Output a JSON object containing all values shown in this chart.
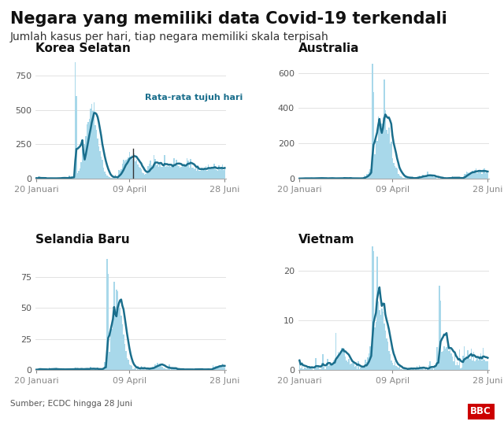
{
  "title": "Negara yang memiliki data Covid-19 terkendali",
  "subtitle": "Jumlah kasus per hari, tiap negara memiliki skala terpisah",
  "source": "Sumber; ECDC hingga 28 Juni",
  "countries": [
    "Korea Selatan",
    "Australia",
    "Selandia Baru",
    "Vietnam"
  ],
  "x_labels": [
    "20 Januari",
    "09 April",
    "28 Juni"
  ],
  "bar_color": "#a8d8ea",
  "line_color": "#1a6e8c",
  "annotation_label": "Rata-rata tujuh hari",
  "annotation_color": "#1a6e8c",
  "ylims": {
    "Korea Selatan": [
      0,
      900
    ],
    "Australia": [
      0,
      700
    ],
    "Selandia Baru": [
      0,
      100
    ],
    "Vietnam": [
      0,
      25
    ]
  },
  "yticks": {
    "Korea Selatan": [
      0,
      250,
      500,
      750
    ],
    "Australia": [
      0,
      200,
      400,
      600
    ],
    "Selandia Baru": [
      0,
      25,
      50,
      75
    ],
    "Vietnam": [
      0,
      10,
      20
    ]
  },
  "title_fontsize": 15,
  "subtitle_fontsize": 10,
  "subplot_title_fontsize": 11,
  "tick_fontsize": 8,
  "background_color": "#ffffff",
  "grid_color": "#dddddd"
}
